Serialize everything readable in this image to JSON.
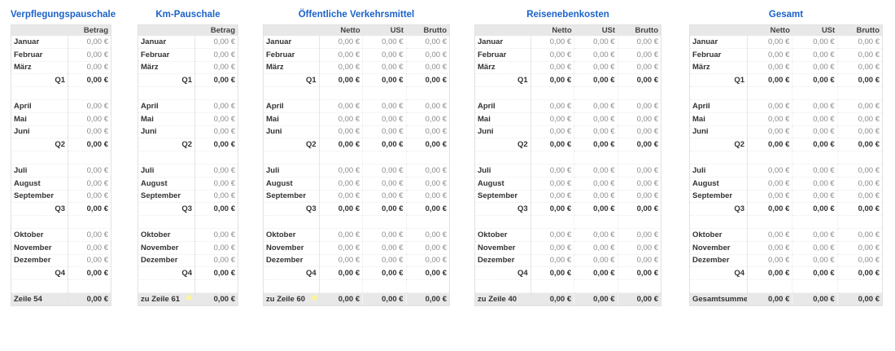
{
  "tables": [
    {
      "title": "Verpflegungspauschale",
      "columns": [
        "Betrag"
      ],
      "quarters": [
        {
          "months": [
            {
              "label": "Januar",
              "values": [
                "0,00 €"
              ]
            },
            {
              "label": "Februar",
              "values": [
                "0,00 €"
              ]
            },
            {
              "label": "März",
              "values": [
                "0,00 €"
              ]
            }
          ],
          "total": {
            "label": "Q1",
            "values": [
              "0,00 €"
            ]
          }
        },
        {
          "months": [
            {
              "label": "April",
              "values": [
                "0,00 €"
              ]
            },
            {
              "label": "Mai",
              "values": [
                "0,00 €"
              ]
            },
            {
              "label": "Juni",
              "values": [
                "0,00 €"
              ]
            }
          ],
          "total": {
            "label": "Q2",
            "values": [
              "0,00 €"
            ]
          }
        },
        {
          "months": [
            {
              "label": "Juli",
              "values": [
                "0,00 €"
              ]
            },
            {
              "label": "August",
              "values": [
                "0,00 €"
              ]
            },
            {
              "label": "September",
              "values": [
                "0,00 €"
              ]
            }
          ],
          "total": {
            "label": "Q3",
            "values": [
              "0,00 €"
            ]
          }
        },
        {
          "months": [
            {
              "label": "Oktober",
              "values": [
                "0,00 €"
              ]
            },
            {
              "label": "November",
              "values": [
                "0,00 €"
              ]
            },
            {
              "label": "Dezember",
              "values": [
                "0,00 €"
              ]
            }
          ],
          "total": {
            "label": "Q4",
            "values": [
              "0,00 €"
            ]
          }
        }
      ],
      "footer": {
        "label": "Zeile 54",
        "values": [
          "0,00 €"
        ]
      }
    },
    {
      "title": "Km-Pauschale",
      "columns": [
        "Betrag"
      ],
      "quarters": [
        {
          "months": [
            {
              "label": "Januar",
              "values": [
                "0,00 €"
              ]
            },
            {
              "label": "Februar",
              "values": [
                "0,00 €"
              ]
            },
            {
              "label": "März",
              "values": [
                "0,00 €"
              ]
            }
          ],
          "total": {
            "label": "Q1",
            "values": [
              "0,00 €"
            ]
          }
        },
        {
          "months": [
            {
              "label": "April",
              "values": [
                "0,00 €"
              ]
            },
            {
              "label": "Mai",
              "values": [
                "0,00 €"
              ]
            },
            {
              "label": "Juni",
              "values": [
                "0,00 €"
              ]
            }
          ],
          "total": {
            "label": "Q2",
            "values": [
              "0,00 €"
            ]
          }
        },
        {
          "months": [
            {
              "label": "Juli",
              "values": [
                "0,00 €"
              ]
            },
            {
              "label": "August",
              "values": [
                "0,00 €"
              ]
            },
            {
              "label": "September",
              "values": [
                "0,00 €"
              ]
            }
          ],
          "total": {
            "label": "Q3",
            "values": [
              "0,00 €"
            ]
          }
        },
        {
          "months": [
            {
              "label": "Oktober",
              "values": [
                "0,00 €"
              ]
            },
            {
              "label": "November",
              "values": [
                "0,00 €"
              ]
            },
            {
              "label": "Dezember",
              "values": [
                "0,00 €"
              ]
            }
          ],
          "total": {
            "label": "Q4",
            "values": [
              "0,00 €"
            ]
          }
        }
      ],
      "footer": {
        "label": "zu Zeile 61",
        "values": [
          "0,00 €"
        ],
        "comment": true
      }
    },
    {
      "title": "Öffentliche Verkehrsmittel",
      "columns": [
        "Netto",
        "USt",
        "Brutto"
      ],
      "quarters": [
        {
          "months": [
            {
              "label": "Januar",
              "values": [
                "0,00 €",
                "0,00 €",
                "0,00 €"
              ]
            },
            {
              "label": "Februar",
              "values": [
                "0,00 €",
                "0,00 €",
                "0,00 €"
              ]
            },
            {
              "label": "März",
              "values": [
                "0,00 €",
                "0,00 €",
                "0,00 €"
              ]
            }
          ],
          "total": {
            "label": "Q1",
            "values": [
              "0,00 €",
              "0,00 €",
              "0,00 €"
            ]
          }
        },
        {
          "months": [
            {
              "label": "April",
              "values": [
                "0,00 €",
                "0,00 €",
                "0,00 €"
              ]
            },
            {
              "label": "Mai",
              "values": [
                "0,00 €",
                "0,00 €",
                "0,00 €"
              ]
            },
            {
              "label": "Juni",
              "values": [
                "0,00 €",
                "0,00 €",
                "0,00 €"
              ]
            }
          ],
          "total": {
            "label": "Q2",
            "values": [
              "0,00 €",
              "0,00 €",
              "0,00 €"
            ]
          }
        },
        {
          "months": [
            {
              "label": "Juli",
              "values": [
                "0,00 €",
                "0,00 €",
                "0,00 €"
              ]
            },
            {
              "label": "August",
              "values": [
                "0,00 €",
                "0,00 €",
                "0,00 €"
              ]
            },
            {
              "label": "September",
              "values": [
                "0,00 €",
                "0,00 €",
                "0,00 €"
              ]
            }
          ],
          "total": {
            "label": "Q3",
            "values": [
              "0,00 €",
              "0,00 €",
              "0,00 €"
            ]
          }
        },
        {
          "months": [
            {
              "label": "Oktober",
              "values": [
                "0,00 €",
                "0,00 €",
                "0,00 €"
              ]
            },
            {
              "label": "November",
              "values": [
                "0,00 €",
                "0,00 €",
                "0,00 €"
              ]
            },
            {
              "label": "Dezember",
              "values": [
                "0,00 €",
                "0,00 €",
                "0,00 €"
              ]
            }
          ],
          "total": {
            "label": "Q4",
            "values": [
              "0,00 €",
              "0,00 €",
              "0,00 €"
            ]
          }
        }
      ],
      "footer": {
        "label": "zu Zeile 60",
        "values": [
          "0,00 €",
          "0,00 €",
          "0,00 €"
        ],
        "comment": true
      }
    },
    {
      "title": "Reisenebenkosten",
      "columns": [
        "Netto",
        "USt",
        "Brutto"
      ],
      "quarters": [
        {
          "months": [
            {
              "label": "Januar",
              "values": [
                "0,00 €",
                "0,00 €",
                "0,00 €"
              ]
            },
            {
              "label": "Februar",
              "values": [
                "0,00 €",
                "0,00 €",
                "0,00 €"
              ]
            },
            {
              "label": "März",
              "values": [
                "0,00 €",
                "0,00 €",
                "0,00 €"
              ]
            }
          ],
          "total": {
            "label": "Q1",
            "values": [
              "0,00 €",
              "0,00 €",
              "0,00 €"
            ]
          }
        },
        {
          "months": [
            {
              "label": "April",
              "values": [
                "0,00 €",
                "0,00 €",
                "0,00 €"
              ]
            },
            {
              "label": "Mai",
              "values": [
                "0,00 €",
                "0,00 €",
                "0,00 €"
              ]
            },
            {
              "label": "Juni",
              "values": [
                "0,00 €",
                "0,00 €",
                "0,00 €"
              ]
            }
          ],
          "total": {
            "label": "Q2",
            "values": [
              "0,00 €",
              "0,00 €",
              "0,00 €"
            ]
          }
        },
        {
          "months": [
            {
              "label": "Juli",
              "values": [
                "0,00 €",
                "0,00 €",
                "0,00 €"
              ]
            },
            {
              "label": "August",
              "values": [
                "0,00 €",
                "0,00 €",
                "0,00 €"
              ]
            },
            {
              "label": "September",
              "values": [
                "0,00 €",
                "0,00 €",
                "0,00 €"
              ]
            }
          ],
          "total": {
            "label": "Q3",
            "values": [
              "0,00 €",
              "0,00 €",
              "0,00 €"
            ]
          }
        },
        {
          "months": [
            {
              "label": "Oktober",
              "values": [
                "0,00 €",
                "0,00 €",
                "0,00 €"
              ]
            },
            {
              "label": "November",
              "values": [
                "0,00 €",
                "0,00 €",
                "0,00 €"
              ]
            },
            {
              "label": "Dezember",
              "values": [
                "0,00 €",
                "0,00 €",
                "0,00 €"
              ]
            }
          ],
          "total": {
            "label": "Q4",
            "values": [
              "0,00 €",
              "0,00 €",
              "0,00 €"
            ]
          }
        }
      ],
      "footer": {
        "label": "zu Zeile 40",
        "values": [
          "0,00 €",
          "0,00 €",
          "0,00 €"
        ]
      }
    },
    {
      "title": "Gesamt",
      "columns": [
        "Netto",
        "USt",
        "Brutto"
      ],
      "quarters": [
        {
          "months": [
            {
              "label": "Januar",
              "values": [
                "0,00 €",
                "0,00 €",
                "0,00 €"
              ]
            },
            {
              "label": "Februar",
              "values": [
                "0,00 €",
                "0,00 €",
                "0,00 €"
              ]
            },
            {
              "label": "März",
              "values": [
                "0,00 €",
                "0,00 €",
                "0,00 €"
              ]
            }
          ],
          "total": {
            "label": "Q1",
            "values": [
              "0,00 €",
              "0,00 €",
              "0,00 €"
            ]
          }
        },
        {
          "months": [
            {
              "label": "April",
              "values": [
                "0,00 €",
                "0,00 €",
                "0,00 €"
              ]
            },
            {
              "label": "Mai",
              "values": [
                "0,00 €",
                "0,00 €",
                "0,00 €"
              ]
            },
            {
              "label": "Juni",
              "values": [
                "0,00 €",
                "0,00 €",
                "0,00 €"
              ]
            }
          ],
          "total": {
            "label": "Q2",
            "values": [
              "0,00 €",
              "0,00 €",
              "0,00 €"
            ]
          }
        },
        {
          "months": [
            {
              "label": "Juli",
              "values": [
                "0,00 €",
                "0,00 €",
                "0,00 €"
              ]
            },
            {
              "label": "August",
              "values": [
                "0,00 €",
                "0,00 €",
                "0,00 €"
              ]
            },
            {
              "label": "September",
              "values": [
                "0,00 €",
                "0,00 €",
                "0,00 €"
              ]
            }
          ],
          "total": {
            "label": "Q3",
            "values": [
              "0,00 €",
              "0,00 €",
              "0,00 €"
            ]
          }
        },
        {
          "months": [
            {
              "label": "Oktober",
              "values": [
                "0,00 €",
                "0,00 €",
                "0,00 €"
              ]
            },
            {
              "label": "November",
              "values": [
                "0,00 €",
                "0,00 €",
                "0,00 €"
              ]
            },
            {
              "label": "Dezember",
              "values": [
                "0,00 €",
                "0,00 €",
                "0,00 €"
              ]
            }
          ],
          "total": {
            "label": "Q4",
            "values": [
              "0,00 €",
              "0,00 €",
              "0,00 €"
            ]
          }
        }
      ],
      "footer": {
        "label": "Gesamtsumme",
        "values": [
          "0,00 €",
          "0,00 €",
          "0,00 €"
        ]
      }
    }
  ],
  "colors": {
    "title": "#1c63c9",
    "header_bg": "#e8e8e8",
    "comment_marker": "#fbf3a0"
  }
}
